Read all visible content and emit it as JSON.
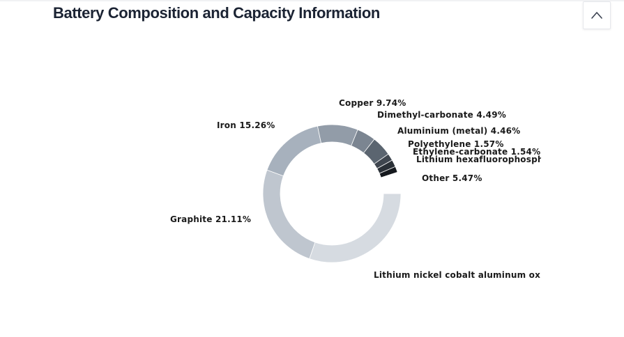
{
  "header": {
    "title": "Battery Composition and Capacity Information",
    "scroll_top_icon": "chevron-up-icon"
  },
  "chart_data": {
    "type": "pie",
    "variant": "donut",
    "title": "",
    "slices": [
      {
        "label": "Lithium nickel cobalt aluminum oxide",
        "text": "Lithium nickel cobalt aluminum oxide",
        "color": "#d6dbe1"
      },
      {
        "label": "Graphite",
        "value": 21.11,
        "text": "Graphite 21.11%",
        "color": "#bfc6cf"
      },
      {
        "label": "Iron",
        "value": 15.26,
        "text": "Iron 15.26%",
        "color": "#a7b1bd"
      },
      {
        "label": "Copper",
        "value": 9.74,
        "text": "Copper 9.74%",
        "color": "#929ca8"
      },
      {
        "label": "Dimethyl-carbonate",
        "value": 4.49,
        "text": "Dimethyl-carbonate 4.49%",
        "color": "#7b8591"
      },
      {
        "label": "Aluminium (metal)",
        "value": 4.46,
        "text": "Aluminium (metal) 4.46%",
        "color": "#5b6570"
      },
      {
        "label": "Polyethylene",
        "value": 1.57,
        "text": "Polyethylene 1.57%",
        "color": "#3f464f"
      },
      {
        "label": "Ethylene-carbonate",
        "value": 1.54,
        "text": "Ethylene-carbonate 1.54%",
        "color": "#2a3037"
      },
      {
        "label": "Lithium hexafluorophosphate",
        "text": "Lithium hexafluorophospha",
        "color": "#15191e"
      },
      {
        "label": "Other",
        "value": 5.47,
        "text": "Other 5.47%",
        "color": "#ffffff"
      }
    ]
  }
}
